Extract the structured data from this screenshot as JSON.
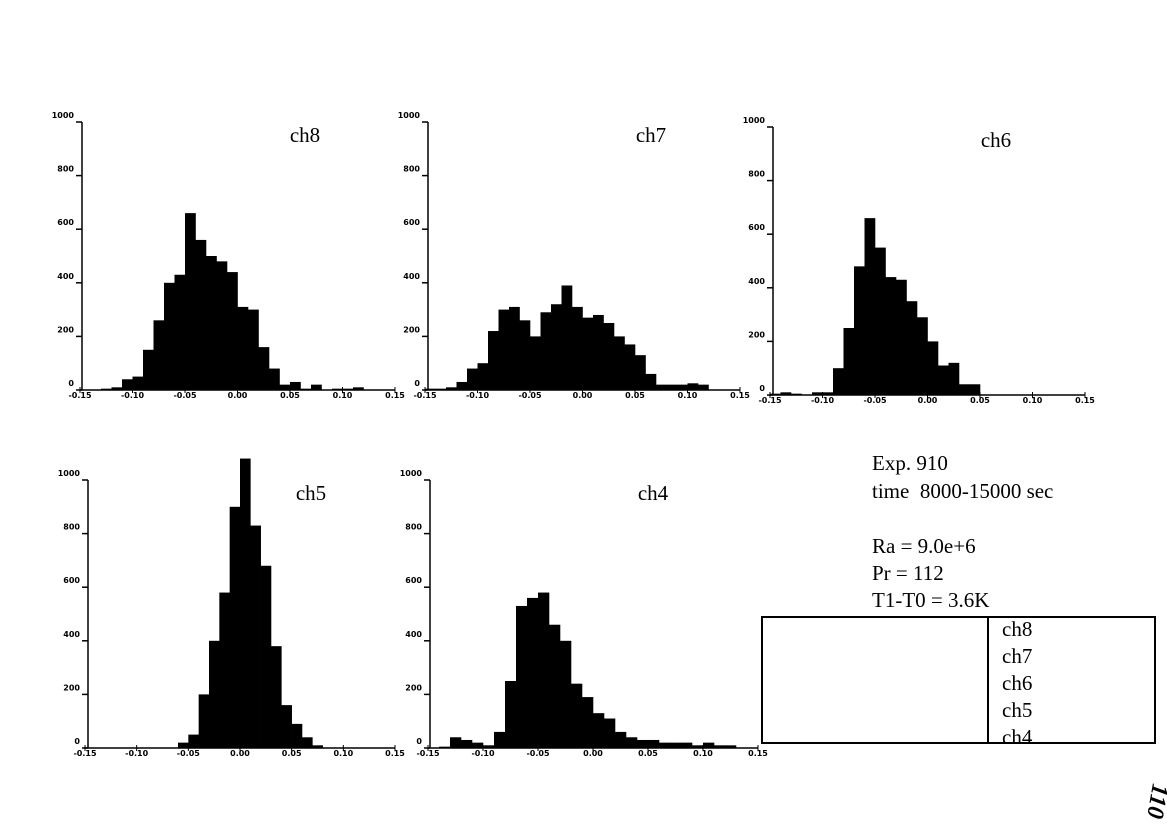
{
  "chart_data": [
    {
      "type": "histogram",
      "title": "ch8",
      "color": "#000000",
      "bins": [
        -0.15,
        -0.14,
        -0.13,
        -0.12,
        -0.11,
        -0.1,
        -0.09,
        -0.08,
        -0.07,
        -0.06,
        -0.05,
        -0.04,
        -0.03,
        -0.02,
        -0.01,
        0,
        0.01,
        0.02,
        0.03,
        0.04,
        0.05,
        0.06,
        0.07,
        0.08,
        0.09,
        0.1,
        0.11,
        0.12,
        0.13,
        0.14,
        0.15
      ],
      "values": [
        0,
        0,
        5,
        10,
        40,
        50,
        150,
        260,
        400,
        430,
        660,
        560,
        500,
        480,
        440,
        310,
        300,
        160,
        80,
        20,
        30,
        5,
        20,
        0,
        5,
        5,
        10,
        0,
        0,
        0
      ],
      "xlim": [
        -0.15,
        0.15
      ],
      "ylim": [
        0,
        1000
      ],
      "xticks": [
        {
          "value": -0.15,
          "label": "-0.15"
        },
        {
          "value": -0.1,
          "label": "-0.10"
        },
        {
          "value": -0.05,
          "label": "-0.05"
        },
        {
          "value": 0,
          "label": "0.00"
        },
        {
          "value": 0.05,
          "label": "0.05"
        },
        {
          "value": 0.1,
          "label": "0.10"
        },
        {
          "value": 0.15,
          "label": "0.15"
        }
      ],
      "yticks": [
        0,
        200,
        400,
        600,
        800,
        1000
      ]
    },
    {
      "type": "histogram",
      "title": "ch7",
      "color": "#000000",
      "bins": [
        -0.15,
        -0.14,
        -0.13,
        -0.12,
        -0.11,
        -0.1,
        -0.09,
        -0.08,
        -0.07,
        -0.06,
        -0.05,
        -0.04,
        -0.03,
        -0.02,
        -0.01,
        0,
        0.01,
        0.02,
        0.03,
        0.04,
        0.05,
        0.06,
        0.07,
        0.08,
        0.09,
        0.1,
        0.11,
        0.12,
        0.13,
        0.14,
        0.15
      ],
      "values": [
        5,
        5,
        10,
        30,
        80,
        100,
        220,
        300,
        310,
        260,
        200,
        290,
        320,
        390,
        310,
        270,
        280,
        250,
        200,
        170,
        130,
        60,
        20,
        20,
        20,
        25,
        20,
        0,
        0,
        0
      ],
      "xlim": [
        -0.15,
        0.15
      ],
      "ylim": [
        0,
        1000
      ],
      "xticks": [
        {
          "value": -0.15,
          "label": "-0.15"
        },
        {
          "value": -0.1,
          "label": "-0.10"
        },
        {
          "value": -0.05,
          "label": "-0.05"
        },
        {
          "value": 0,
          "label": "0.00"
        },
        {
          "value": 0.05,
          "label": "0.05"
        },
        {
          "value": 0.1,
          "label": "0.10"
        },
        {
          "value": 0.15,
          "label": "0.15"
        }
      ],
      "yticks": [
        0,
        200,
        400,
        600,
        800,
        1000
      ]
    },
    {
      "type": "histogram",
      "title": "ch6",
      "color": "#000000",
      "bins": [
        -0.15,
        -0.14,
        -0.13,
        -0.12,
        -0.11,
        -0.1,
        -0.09,
        -0.08,
        -0.07,
        -0.06,
        -0.05,
        -0.04,
        -0.03,
        -0.02,
        -0.01,
        0,
        0.01,
        0.02,
        0.03,
        0.04,
        0.05,
        0.06,
        0.07,
        0.08,
        0.09,
        0.1,
        0.11,
        0.12,
        0.13,
        0.14,
        0.15
      ],
      "values": [
        5,
        10,
        5,
        0,
        10,
        10,
        100,
        250,
        480,
        660,
        550,
        440,
        430,
        350,
        290,
        200,
        110,
        120,
        40,
        40,
        0,
        0,
        0,
        0,
        0,
        0,
        0,
        0,
        0,
        0
      ],
      "xlim": [
        -0.15,
        0.15
      ],
      "ylim": [
        0,
        1000
      ],
      "xticks": [
        {
          "value": -0.15,
          "label": "-0.15"
        },
        {
          "value": -0.1,
          "label": "-0.10"
        },
        {
          "value": -0.05,
          "label": "-0.05"
        },
        {
          "value": 0,
          "label": "0.00"
        },
        {
          "value": 0.05,
          "label": "0.05"
        },
        {
          "value": 0.1,
          "label": "0.10"
        },
        {
          "value": 0.15,
          "label": "0.15"
        }
      ],
      "yticks": [
        0,
        200,
        400,
        600,
        800,
        1000
      ]
    },
    {
      "type": "histogram",
      "title": "ch5",
      "color": "#000000",
      "bins": [
        -0.15,
        -0.14,
        -0.13,
        -0.12,
        -0.11,
        -0.1,
        -0.09,
        -0.08,
        -0.07,
        -0.06,
        -0.05,
        -0.04,
        -0.03,
        -0.02,
        -0.01,
        0,
        0.01,
        0.02,
        0.03,
        0.04,
        0.05,
        0.06,
        0.07,
        0.08,
        0.09,
        0.1,
        0.11,
        0.12,
        0.13,
        0.14,
        0.15
      ],
      "values": [
        0,
        0,
        0,
        0,
        0,
        0,
        0,
        0,
        0,
        20,
        50,
        200,
        400,
        580,
        900,
        1080,
        830,
        680,
        380,
        160,
        90,
        40,
        10,
        0,
        0,
        0,
        0,
        0,
        0,
        0
      ],
      "xlim": [
        -0.15,
        0.15
      ],
      "ylim": [
        0,
        1000
      ],
      "xticks": [
        {
          "value": -0.15,
          "label": "-0.15"
        },
        {
          "value": -0.1,
          "label": "-0.10"
        },
        {
          "value": -0.05,
          "label": "-0.05"
        },
        {
          "value": 0,
          "label": "0.00"
        },
        {
          "value": 0.05,
          "label": "0.05"
        },
        {
          "value": 0.1,
          "label": "0.10"
        },
        {
          "value": 0.15,
          "label": "0.15"
        }
      ],
      "yticks": [
        0,
        200,
        400,
        600,
        800,
        1000
      ]
    },
    {
      "type": "histogram",
      "title": "ch4",
      "color": "#000000",
      "bins": [
        -0.15,
        -0.14,
        -0.13,
        -0.12,
        -0.11,
        -0.1,
        -0.09,
        -0.08,
        -0.07,
        -0.06,
        -0.05,
        -0.04,
        -0.03,
        -0.02,
        -0.01,
        0,
        0.01,
        0.02,
        0.03,
        0.04,
        0.05,
        0.06,
        0.07,
        0.08,
        0.09,
        0.1,
        0.11,
        0.12,
        0.13,
        0.14,
        0.15
      ],
      "values": [
        0,
        5,
        40,
        30,
        20,
        10,
        60,
        250,
        530,
        560,
        580,
        460,
        400,
        240,
        190,
        130,
        110,
        60,
        40,
        30,
        30,
        20,
        20,
        20,
        10,
        20,
        10,
        10,
        0,
        0
      ],
      "xlim": [
        -0.15,
        0.15
      ],
      "ylim": [
        0,
        1000
      ],
      "xticks": [
        {
          "value": -0.15,
          "label": "-0.15"
        },
        {
          "value": -0.1,
          "label": "-0.10"
        },
        {
          "value": -0.05,
          "label": "-0.05"
        },
        {
          "value": 0,
          "label": "0.00"
        },
        {
          "value": 0.05,
          "label": "0.05"
        },
        {
          "value": 0.1,
          "label": "0.10"
        },
        {
          "value": 0.15,
          "label": "0.15"
        }
      ],
      "yticks": [
        0,
        200,
        400,
        600,
        800,
        1000
      ]
    }
  ],
  "notes": {
    "experiment": "Exp. 910",
    "time": "time  8000-15000 sec",
    "ra": "Ra = 9.0e+6",
    "pr": "Pr = 112",
    "delta_t": "T1-T0 = 3.6K",
    "page_number": "110"
  }
}
